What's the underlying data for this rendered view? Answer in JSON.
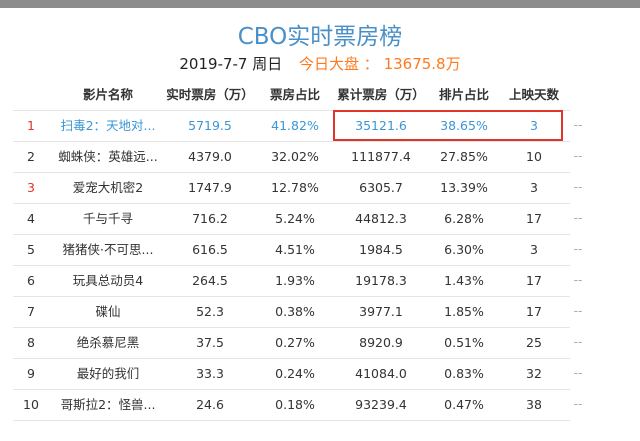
{
  "title": "CBO实时票房榜",
  "subtitle": {
    "date": "2019-7-7 周日",
    "today_label": "今日大盘 ： 13675.8万"
  },
  "headers": {
    "name": "影片名称",
    "realtime": "实时票房（万）",
    "share": "票房占比",
    "total": "累计票房（万）",
    "screen_share": "排片占比",
    "days": "上映天数"
  },
  "rows": [
    {
      "rank": "1",
      "name": "扫毒2：天地对...",
      "realtime": "5719.5",
      "share": "41.82%",
      "total": "35121.6",
      "screen_share": "38.65%",
      "days": "3",
      "more": "--"
    },
    {
      "rank": "2",
      "name": "蜘蛛侠：英雄远...",
      "realtime": "4379.0",
      "share": "32.02%",
      "total": "111877.4",
      "screen_share": "27.85%",
      "days": "10",
      "more": "--"
    },
    {
      "rank": "3",
      "name": "爱宠大机密2",
      "realtime": "1747.9",
      "share": "12.78%",
      "total": "6305.7",
      "screen_share": "13.39%",
      "days": "3",
      "more": "--"
    },
    {
      "rank": "4",
      "name": "千与千寻",
      "realtime": "716.2",
      "share": "5.24%",
      "total": "44812.3",
      "screen_share": "6.28%",
      "days": "17",
      "more": "--"
    },
    {
      "rank": "5",
      "name": "猪猪侠·不可思...",
      "realtime": "616.5",
      "share": "4.51%",
      "total": "1984.5",
      "screen_share": "6.30%",
      "days": "3",
      "more": "--"
    },
    {
      "rank": "6",
      "name": "玩具总动员4",
      "realtime": "264.5",
      "share": "1.93%",
      "total": "19178.3",
      "screen_share": "1.43%",
      "days": "17",
      "more": "--"
    },
    {
      "rank": "7",
      "name": "碟仙",
      "realtime": "52.3",
      "share": "0.38%",
      "total": "3977.1",
      "screen_share": "1.85%",
      "days": "17",
      "more": "--"
    },
    {
      "rank": "8",
      "name": "绝杀慕尼黑",
      "realtime": "37.5",
      "share": "0.27%",
      "total": "8920.9",
      "screen_share": "0.51%",
      "days": "25",
      "more": "--"
    },
    {
      "rank": "9",
      "name": "最好的我们",
      "realtime": "33.3",
      "share": "0.24%",
      "total": "41084.0",
      "screen_share": "0.83%",
      "days": "32",
      "more": "--"
    },
    {
      "rank": "10",
      "name": "哥斯拉2：怪兽...",
      "realtime": "24.6",
      "share": "0.18%",
      "total": "93239.4",
      "screen_share": "0.47%",
      "days": "38",
      "more": "--"
    }
  ],
  "colors": {
    "title": "#4a90c8",
    "today": "#ff7a1f",
    "highlight": "#3a96d4",
    "rank_top": "#e0352b",
    "box": "#e0352b"
  }
}
